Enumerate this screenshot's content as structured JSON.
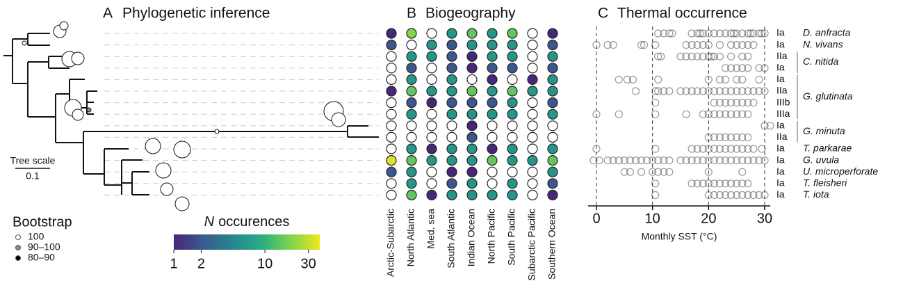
{
  "panel_a": {
    "label": "A",
    "title": "Phylogenetic inference",
    "scale_title": "Tree scale",
    "scale_label": "0.1"
  },
  "bootstrap": {
    "title": "Bootstrap",
    "items": [
      {
        "label": "100",
        "color": "#ffffff"
      },
      {
        "label": "90–100",
        "color": "#8c8c8c"
      },
      {
        "label": "80–90",
        "color": "#000000"
      }
    ]
  },
  "panel_b": {
    "label": "B",
    "title": "Biogeography",
    "columns": [
      "Arctic-Subarctic",
      "North Atlantic",
      "Med. sea",
      "South Atlantic",
      "Indian Ocean",
      "North Pacific",
      "South Pacific",
      "Subarctic Pacific",
      "Southern Ocean"
    ],
    "values": [
      [
        1,
        20,
        0,
        6,
        15,
        6,
        15,
        0,
        1
      ],
      [
        2,
        0,
        6,
        2,
        6,
        6,
        6,
        0,
        2
      ],
      [
        0,
        6,
        6,
        2,
        1,
        6,
        6,
        0,
        6
      ],
      [
        0,
        2,
        0,
        2,
        1,
        2,
        2,
        0,
        2
      ],
      [
        0,
        6,
        0,
        6,
        0,
        1,
        0,
        1,
        6
      ],
      [
        1,
        15,
        6,
        6,
        15,
        6,
        15,
        6,
        6
      ],
      [
        0,
        2,
        1,
        2,
        2,
        2,
        6,
        0,
        2
      ],
      [
        0,
        6,
        0,
        6,
        6,
        6,
        6,
        0,
        6
      ],
      [
        0,
        0,
        0,
        0,
        1,
        0,
        0,
        0,
        0
      ],
      [
        0,
        0,
        0,
        0,
        2,
        0,
        0,
        0,
        0
      ],
      [
        0,
        6,
        1,
        6,
        6,
        1,
        6,
        0,
        6
      ],
      [
        35,
        15,
        6,
        6,
        6,
        15,
        6,
        6,
        15
      ],
      [
        2,
        6,
        0,
        1,
        1,
        0,
        0,
        0,
        6
      ],
      [
        0,
        6,
        0,
        2,
        6,
        0,
        6,
        0,
        2
      ],
      [
        0,
        15,
        1,
        6,
        6,
        6,
        6,
        0,
        1
      ]
    ],
    "colorbar": {
      "title_italic": "N",
      "title": "occurences",
      "scale": "log",
      "clim": [
        1,
        40
      ],
      "ticks": [
        1,
        2,
        10,
        30
      ],
      "colors": [
        "#46277a",
        "#3b5a8f",
        "#26858e",
        "#27ad81",
        "#7fd34e",
        "#f2e51d"
      ],
      "empty_color": "#ffffff"
    }
  },
  "panel_c": {
    "label": "C",
    "title": "Thermal occurrence",
    "xlabel": "Monthly SST (°C)",
    "xlim": [
      -1.5,
      31
    ],
    "xticks": [
      0,
      10,
      20,
      30
    ],
    "rows": [
      {
        "genotype": "Ia",
        "color": "#000000",
        "sst": [
          11,
          12,
          13,
          13.5,
          17,
          18,
          18.5,
          19,
          20,
          21,
          22,
          23,
          24,
          24.5,
          25,
          26,
          27,
          27.5,
          28,
          29,
          29.5,
          30
        ]
      },
      {
        "genotype": "Ia",
        "color": "#000000",
        "sst": [
          0,
          2,
          3,
          8,
          8.5,
          10.5,
          16,
          17,
          18,
          19,
          20,
          22,
          24,
          25,
          26,
          27,
          28
        ]
      },
      {
        "genotype": "IIa",
        "color": "#000000",
        "sst": [
          11,
          11.5,
          15,
          16,
          17,
          18,
          19,
          20,
          20.5,
          21,
          22,
          24,
          26,
          27
        ]
      },
      {
        "genotype": "Ia",
        "color": "#000000",
        "sst": [
          23,
          24,
          25,
          26,
          27,
          29,
          30
        ]
      },
      {
        "genotype": "Ia",
        "color": "#000000",
        "sst": [
          4,
          5.5,
          6.5,
          11,
          20,
          22,
          23,
          25,
          26,
          29
        ]
      },
      {
        "genotype": "IIa",
        "color": "#000000",
        "sst": [
          7,
          10.5,
          11,
          12,
          13,
          15,
          16,
          17,
          18,
          19,
          20,
          21,
          22,
          23,
          24,
          25,
          26,
          27,
          28,
          29,
          30
        ]
      },
      {
        "genotype": "IIIb",
        "color": "#000000",
        "sst": [
          10.5,
          21,
          22,
          23,
          24,
          25,
          26,
          27,
          28
        ]
      },
      {
        "genotype": "IIIa",
        "color": "#000000",
        "sst": [
          0,
          4,
          10.5,
          16,
          19,
          20,
          21,
          22,
          23,
          24,
          25,
          26,
          27
        ]
      },
      {
        "genotype": "Ia",
        "color": "#000000",
        "sst": [
          30,
          31
        ]
      },
      {
        "genotype": "IIa",
        "color": "#000000",
        "sst": [
          20,
          21,
          22,
          23,
          24,
          25,
          26,
          27
        ]
      },
      {
        "genotype": "Ia",
        "color": "#999999",
        "sst": [
          0,
          10.5,
          17,
          18,
          19,
          20,
          21,
          22,
          23,
          24,
          25,
          26,
          27,
          28,
          29.5
        ]
      },
      {
        "genotype": "Ia",
        "color": "#000000",
        "sst": [
          -0.5,
          0.5,
          2,
          3,
          4,
          5,
          6,
          7,
          8,
          9,
          10,
          11,
          12,
          13,
          15,
          16,
          17,
          18,
          19,
          20,
          21,
          22,
          23,
          24,
          25,
          26,
          27,
          28,
          29,
          30
        ]
      },
      {
        "genotype": "Ia",
        "color": "#999999",
        "sst": [
          5,
          6,
          8,
          10,
          11,
          12,
          13,
          20,
          26
        ]
      },
      {
        "genotype": "Ia",
        "color": "#000000",
        "sst": [
          10.5,
          17,
          18,
          19,
          20,
          21,
          22,
          23,
          24,
          25,
          26,
          27
        ]
      },
      {
        "genotype": "Ia",
        "color": "#000000",
        "sst": [
          10.5,
          20,
          21,
          22,
          23,
          24,
          25,
          26,
          27,
          28,
          29,
          30
        ]
      }
    ],
    "species": [
      {
        "name": "D. anfracta",
        "rows": [
          0,
          0
        ],
        "color": "#000000"
      },
      {
        "name": "N. vivans",
        "rows": [
          1,
          1
        ],
        "color": "#000000"
      },
      {
        "name": "C. nitida",
        "rows": [
          2,
          3
        ],
        "color": "#000000"
      },
      {
        "name": "G. glutinata",
        "rows": [
          4,
          7
        ],
        "color": "#000000"
      },
      {
        "name": "G. minuta",
        "rows": [
          8,
          9
        ],
        "color": "#000000"
      },
      {
        "name": "T. parkarae",
        "rows": [
          10,
          10
        ],
        "color": "#999999"
      },
      {
        "name": "G. uvula",
        "rows": [
          11,
          11
        ],
        "color": "#000000"
      },
      {
        "name": "U. microperforate",
        "rows": [
          12,
          12
        ],
        "color": "#999999"
      },
      {
        "name": "T. fleisheri",
        "rows": [
          13,
          13
        ],
        "color": "#000000"
      },
      {
        "name": "T. iota",
        "rows": [
          14,
          14
        ],
        "color": "#000000"
      }
    ]
  }
}
